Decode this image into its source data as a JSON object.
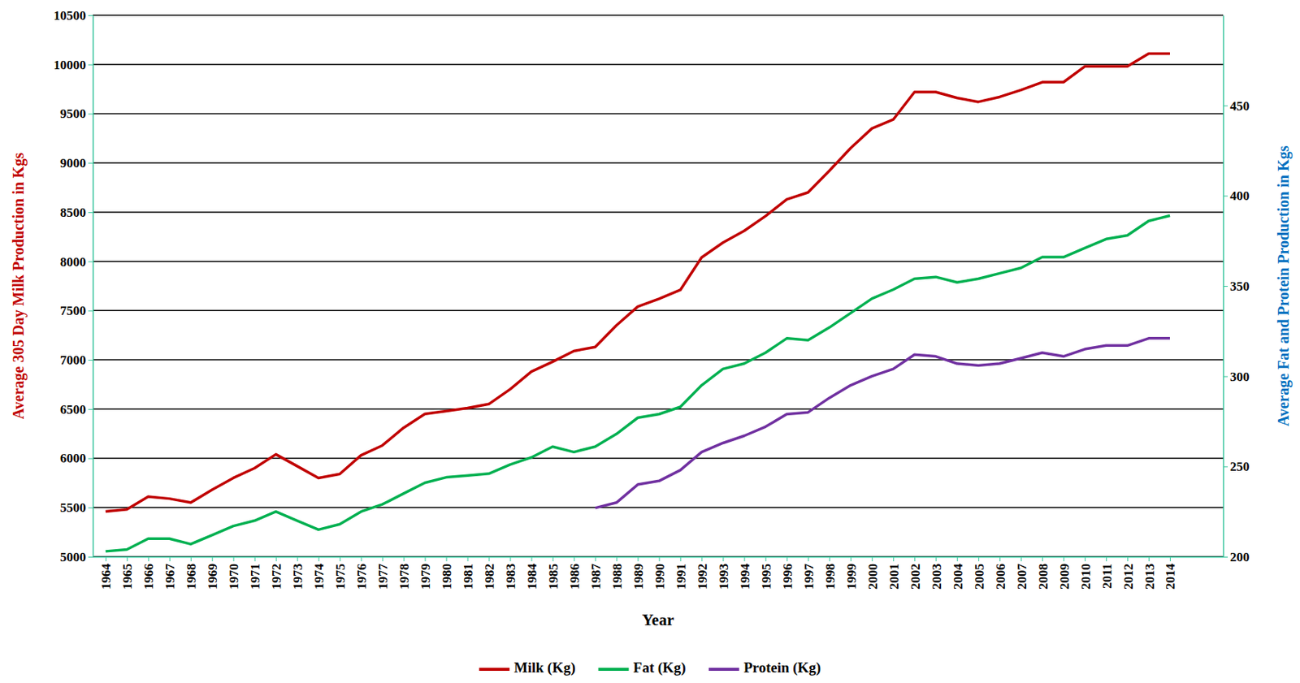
{
  "chart_data": {
    "type": "line",
    "x_label": "Year",
    "y_label": "Average 305 Day Milk Production in Kgs",
    "y2_label": "Average Fat and Protein Production in Kgs",
    "x": [
      1964,
      1965,
      1966,
      1967,
      1968,
      1969,
      1970,
      1971,
      1972,
      1973,
      1974,
      1975,
      1976,
      1977,
      1978,
      1979,
      1980,
      1981,
      1982,
      1983,
      1984,
      1985,
      1986,
      1987,
      1988,
      1989,
      1990,
      1991,
      1992,
      1993,
      1994,
      1995,
      1996,
      1997,
      1998,
      1999,
      2000,
      2001,
      2002,
      2003,
      2004,
      2005,
      2006,
      2007,
      2008,
      2009,
      2010,
      2011,
      2012,
      2013,
      2014
    ],
    "series": [
      {
        "name": "Milk (Kg)",
        "color": "#c00000",
        "values": [
          5460,
          5480,
          5610,
          5590,
          5550,
          5680,
          5800,
          5900,
          6040,
          5920,
          5800,
          5840,
          6030,
          6130,
          6310,
          6450,
          6480,
          6510,
          6550,
          6700,
          6880,
          6980,
          7090,
          7130,
          7350,
          7540,
          7620,
          7710,
          8040,
          8190,
          8310,
          8460,
          8630,
          8700,
          8920,
          9150,
          9350,
          9440,
          9720,
          9720,
          9660,
          9620,
          9670,
          9740,
          9820,
          9820,
          9980,
          9980,
          9980,
          10110,
          10110
        ]
      },
      {
        "name": "Fat (Kg)",
        "color": "#00b050",
        "axis": "y2",
        "values": [
          203,
          204,
          210,
          210,
          207,
          212,
          217,
          220,
          225,
          220,
          215,
          218,
          225,
          229,
          235,
          241,
          244,
          245,
          246,
          251,
          255,
          261,
          258,
          261,
          268,
          277,
          279,
          283,
          295,
          304,
          307,
          313,
          321,
          320,
          327,
          335,
          343,
          348,
          354,
          355,
          352,
          354,
          357,
          360,
          366,
          366,
          371,
          376,
          378,
          386,
          389
        ]
      },
      {
        "name": "Protein (Kg)",
        "color": "#7030a0",
        "axis": "y2",
        "values": [
          null,
          null,
          null,
          null,
          null,
          null,
          null,
          null,
          null,
          null,
          null,
          null,
          null,
          null,
          null,
          null,
          null,
          null,
          null,
          null,
          null,
          null,
          null,
          227,
          230,
          240,
          242,
          248,
          258,
          263,
          267,
          272,
          279,
          280,
          288,
          295,
          300,
          304,
          312,
          311,
          307,
          306,
          307,
          310,
          313,
          311,
          315,
          317,
          317,
          321,
          321
        ]
      }
    ],
    "xlim": [
      1963.4,
      2016.5
    ],
    "xticks": [
      1964,
      1965,
      1966,
      1967,
      1968,
      1969,
      1970,
      1971,
      1972,
      1973,
      1974,
      1975,
      1976,
      1977,
      1978,
      1979,
      1980,
      1981,
      1982,
      1983,
      1984,
      1985,
      1986,
      1987,
      1988,
      1989,
      1990,
      1991,
      1992,
      1993,
      1994,
      1995,
      1996,
      1997,
      1998,
      1999,
      2000,
      2001,
      2002,
      2003,
      2004,
      2005,
      2006,
      2007,
      2008,
      2009,
      2010,
      2011,
      2012,
      2013,
      2014
    ],
    "ylim": [
      5000,
      10500
    ],
    "yticks": [
      5000,
      5500,
      6000,
      6500,
      7000,
      7500,
      8000,
      8500,
      9000,
      9500,
      10000,
      10500
    ],
    "y2lim": [
      200,
      500
    ],
    "y2ticks": [
      200,
      250,
      300,
      350,
      400,
      450
    ],
    "grid": true,
    "legend": "bottom"
  }
}
